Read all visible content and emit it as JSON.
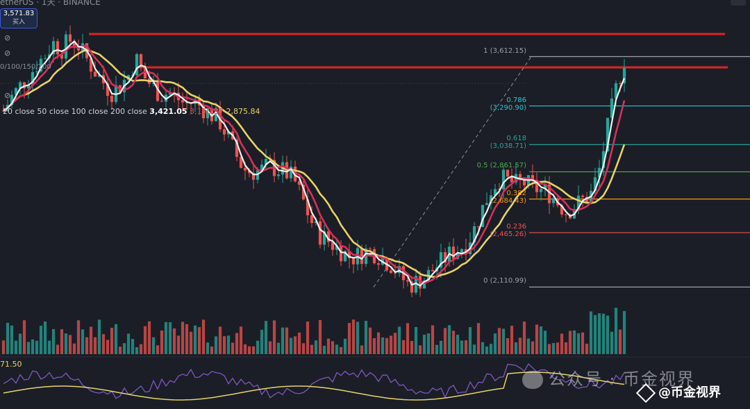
{
  "header": {
    "ticker": "etherUS · 1天 · BINANCE",
    "price_badge": "3,571.83",
    "price_badge_sub": "买入"
  },
  "ma_legend": {
    "params": "0/100/150/200",
    "label": "20 close 50 close 100 close 200 close",
    "value1": "3,421.05",
    "value2": "3,150.37",
    "value3": "2,875.84"
  },
  "rsi": {
    "value_label": "71.50"
  },
  "watermark": {
    "wechat_text": "公众号 · 币金视界",
    "brand_text": "@币金视界"
  },
  "colors": {
    "background": "#1b1e26",
    "up_candle": "#26a69a",
    "down_candle": "#ef5350",
    "ma_white": "#f0f0f0",
    "ma_red": "#d6305a",
    "ma_yellow": "#e8d36a",
    "resistance": "#e02424"
  },
  "chart_data": {
    "type": "candlestick",
    "y_range": [
      1900,
      3800
    ],
    "resistance_levels": [
      3730,
      3610
    ],
    "fibonacci": [
      {
        "ratio": "1",
        "price": 3612.15,
        "label": "1 (3,612.15)",
        "color": "#9aa0aa"
      },
      {
        "ratio": "0.786",
        "price": 3290.9,
        "label": "0.786 (3,290.90)",
        "color": "#26c6da"
      },
      {
        "ratio": "0.618",
        "price": 3038.71,
        "label": "0.618 (3,038.71)",
        "color": "#26a69a"
      },
      {
        "ratio": "0.5",
        "price": 2861.57,
        "label": "0.5 (2,861.57)",
        "color": "#4caf50"
      },
      {
        "ratio": "0.382",
        "price": 2684.43,
        "label": "0.382 (2,684.43)",
        "color": "#ff9800"
      },
      {
        "ratio": "0.236",
        "price": 2465.26,
        "label": "0.236 (2,465.26)",
        "color": "#ef5350"
      },
      {
        "ratio": "0",
        "price": 2110.99,
        "label": "0 (2,110.99)",
        "color": "#9aa0aa"
      }
    ],
    "close_path": [
      3260,
      3350,
      3420,
      3480,
      3560,
      3620,
      3700,
      3660,
      3720,
      3690,
      3600,
      3520,
      3450,
      3380,
      3420,
      3480,
      3600,
      3480,
      3420,
      3360,
      3380,
      3340,
      3300,
      3320,
      3280,
      3240,
      3200,
      3100,
      2980,
      2880,
      2860,
      2870,
      2900,
      2880,
      2860,
      2820,
      2700,
      2560,
      2460,
      2420,
      2380,
      2340,
      2300,
      2320,
      2350,
      2330,
      2290,
      2250,
      2180,
      2120,
      2150,
      2170,
      2230,
      2280,
      2330,
      2360,
      2400,
      2500,
      2640,
      2760,
      2820,
      2800,
      2780,
      2790,
      2760,
      2740,
      2720,
      2660,
      2600,
      2640,
      2680,
      2720,
      2880,
      3150,
      3400,
      3590
    ]
  }
}
